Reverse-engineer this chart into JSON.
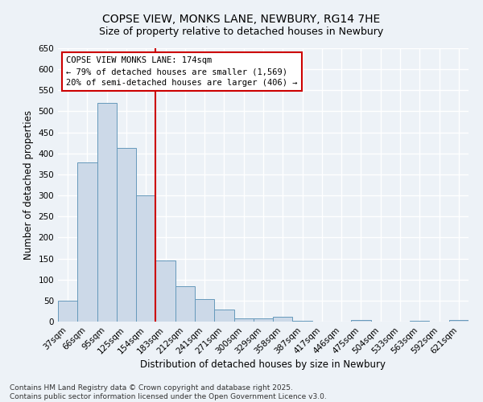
{
  "title_line1": "COPSE VIEW, MONKS LANE, NEWBURY, RG14 7HE",
  "title_line2": "Size of property relative to detached houses in Newbury",
  "xlabel": "Distribution of detached houses by size in Newbury",
  "ylabel": "Number of detached properties",
  "categories": [
    "37sqm",
    "66sqm",
    "95sqm",
    "125sqm",
    "154sqm",
    "183sqm",
    "212sqm",
    "241sqm",
    "271sqm",
    "300sqm",
    "329sqm",
    "358sqm",
    "387sqm",
    "417sqm",
    "446sqm",
    "475sqm",
    "504sqm",
    "533sqm",
    "563sqm",
    "592sqm",
    "621sqm"
  ],
  "values": [
    50,
    378,
    520,
    413,
    300,
    145,
    85,
    54,
    28,
    8,
    8,
    11,
    1,
    0,
    0,
    3,
    0,
    0,
    1,
    0,
    4
  ],
  "bar_color": "#ccd9e8",
  "bar_edge_color": "#6699bb",
  "redline_index": 5,
  "redline_color": "#cc0000",
  "annotation_text": "COPSE VIEW MONKS LANE: 174sqm\n← 79% of detached houses are smaller (1,569)\n20% of semi-detached houses are larger (406) →",
  "annotation_box_color": "#ffffff",
  "annotation_box_edge_color": "#cc0000",
  "ylim": [
    0,
    650
  ],
  "yticks": [
    0,
    50,
    100,
    150,
    200,
    250,
    300,
    350,
    400,
    450,
    500,
    550,
    600,
    650
  ],
  "background_color": "#edf2f7",
  "grid_color": "#ffffff",
  "footer_text": "Contains HM Land Registry data © Crown copyright and database right 2025.\nContains public sector information licensed under the Open Government Licence v3.0.",
  "title_fontsize": 10,
  "subtitle_fontsize": 9,
  "axis_label_fontsize": 8.5,
  "tick_fontsize": 7.5,
  "annotation_fontsize": 7.5,
  "footer_fontsize": 6.5
}
